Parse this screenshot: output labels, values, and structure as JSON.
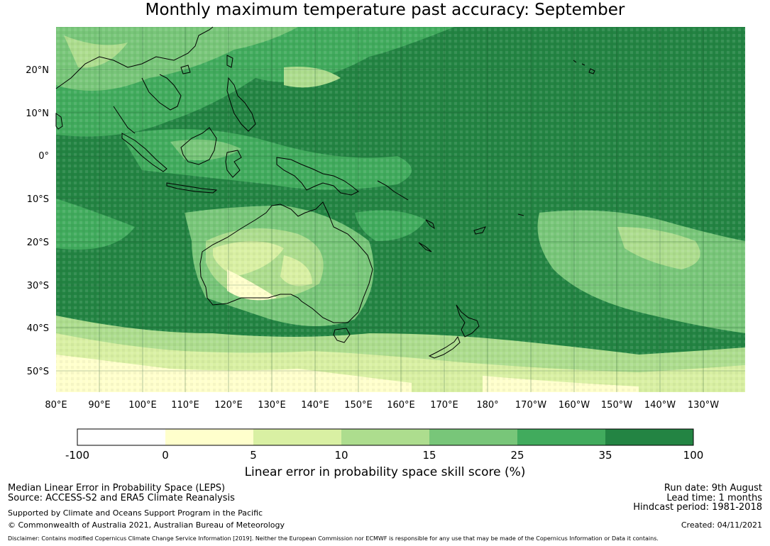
{
  "title": "Monthly maximum temperature past accuracy: September",
  "map": {
    "lat_labels": [
      "20°N",
      "10°N",
      "0°",
      "10°S",
      "20°S",
      "30°S",
      "40°S",
      "50°S"
    ],
    "lon_labels": [
      "80°E",
      "90°E",
      "100°E",
      "110°E",
      "120°E",
      "130°E",
      "140°E",
      "150°E",
      "160°E",
      "170°E",
      "180°",
      "170°W",
      "160°W",
      "150°W",
      "140°W",
      "130°W"
    ]
  },
  "colorbar": {
    "label": "Linear error in probability space skill score (%)",
    "ticks": [
      "-100",
      "0",
      "5",
      "10",
      "15",
      "25",
      "35",
      "100"
    ],
    "colors": [
      "#ffffff",
      "#ffffcc",
      "#d9f0a3",
      "#addd8e",
      "#78c679",
      "#41ab5d",
      "#238443"
    ]
  },
  "footer": {
    "left1": "Median Linear Error in Probability Space (LEPS)",
    "left2": "Source: ACCESS-S2 and ERA5 Climate Reanalysis",
    "left3": "Supported by Climate and Oceans Support Program in the Pacific",
    "left4": "© Commonwealth of Australia 2021, Australian Bureau of Meteorology",
    "right1": "Run date: 9th August",
    "right2": "Lead time: 1 months",
    "right3": "Hindcast period: 1981-2018",
    "right4": "Created: 04/11/2021",
    "disclaimer": "Disclaimer: Contains modified Copernicus Climate Change Service Information [2019]. Neither the European Commission nor ECMWF is responsible for any use that may be made of the Copernicus Information or Data it contains."
  }
}
